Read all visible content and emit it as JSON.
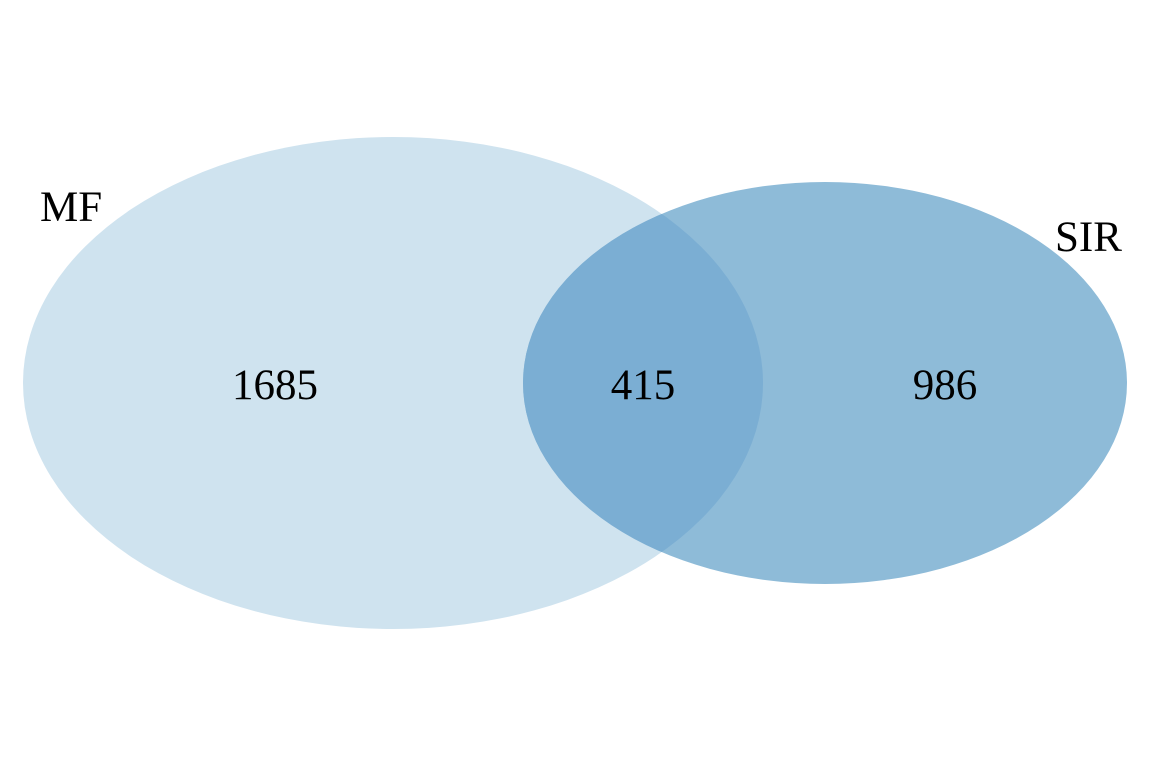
{
  "venn": {
    "sets": [
      {
        "id": "set-a",
        "label": "MF",
        "only_count": "1685",
        "color": "#cfe3ef"
      },
      {
        "id": "set-b",
        "label": "SIR",
        "only_count": "986",
        "color": "#8ebbd8"
      }
    ],
    "intersection_count": "415",
    "intersection_color": "#7baed3"
  }
}
